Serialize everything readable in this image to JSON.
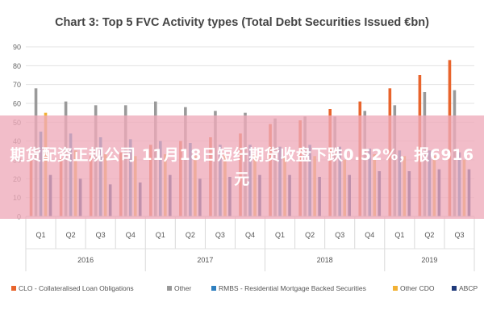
{
  "chart_data": {
    "type": "bar",
    "title": "Chart 3: Top 5 FVC Activity types (Total Debt Securities Issued €bn)",
    "ylim": [
      0,
      90
    ],
    "yticks": [
      "0",
      "10",
      "20",
      "30",
      "40",
      "50",
      "60",
      "70",
      "80",
      "90"
    ],
    "grid": true,
    "legend_position": "bottom",
    "categories": [
      "Q1",
      "Q2",
      "Q3",
      "Q4",
      "Q1",
      "Q2",
      "Q3",
      "Q4",
      "Q1",
      "Q2",
      "Q3",
      "Q4",
      "Q1",
      "Q2",
      "Q3"
    ],
    "years": [
      {
        "label": "2016",
        "quarters": 4
      },
      {
        "label": "2017",
        "quarters": 4
      },
      {
        "label": "2018",
        "quarters": 4
      },
      {
        "label": "2019",
        "quarters": 3
      }
    ],
    "series": [
      {
        "name": "CLO - Collateralised Loan Obligations",
        "color": "#e8642c",
        "values": [
          30,
          31,
          32,
          34,
          38,
          40,
          42,
          44,
          49,
          51,
          57,
          61,
          68,
          75,
          83
        ]
      },
      {
        "name": "Other",
        "color": "#9a9a9a",
        "values": [
          68,
          61,
          59,
          59,
          61,
          58,
          56,
          55,
          52,
          53,
          53,
          56,
          59,
          66,
          67
        ]
      },
      {
        "name": "RMBS - Residential Mortgage Backed Securities",
        "color": "#2f7fbf",
        "values": [
          45,
          44,
          42,
          41,
          40,
          39,
          38,
          38,
          37,
          38,
          37,
          36,
          35,
          35,
          34
        ]
      },
      {
        "name": "Other CDO",
        "color": "#f2b134",
        "values": [
          55,
          35,
          33,
          32,
          33,
          32,
          33,
          33,
          32,
          32,
          30,
          33,
          32,
          32,
          30
        ]
      },
      {
        "name": "ABCP",
        "color": "#1f3a7a",
        "values": [
          22,
          20,
          17,
          18,
          22,
          20,
          21,
          22,
          22,
          21,
          22,
          24,
          24,
          25,
          25
        ]
      }
    ]
  },
  "overlay": {
    "text": "期货配资正规公司 11月18日短纤期货收盘下跌0.52%，报6916元"
  }
}
